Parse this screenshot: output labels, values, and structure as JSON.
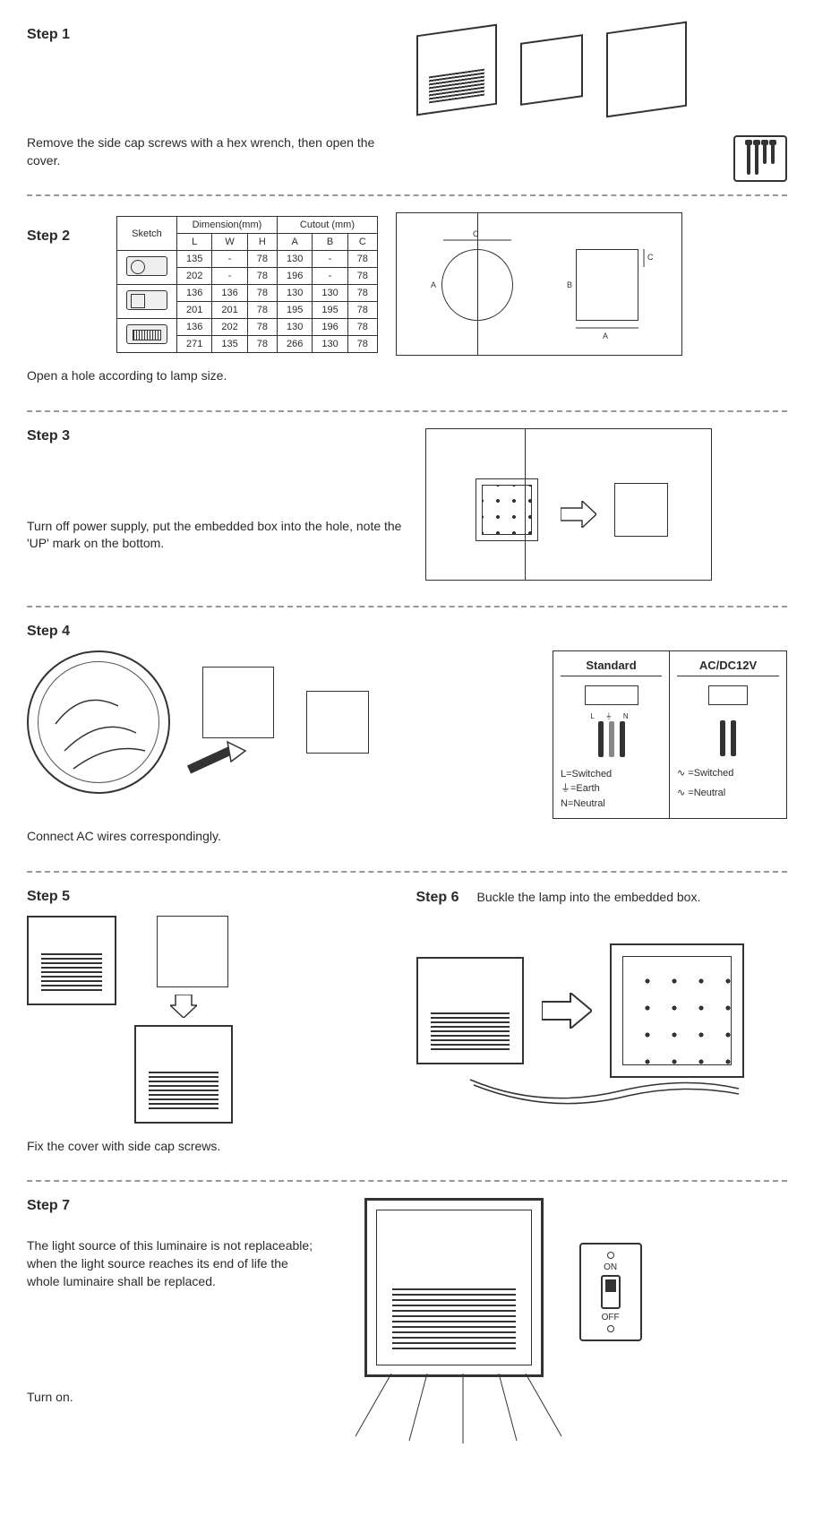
{
  "colors": {
    "ink": "#2b2b2b",
    "line": "#333333",
    "bg": "#ffffff",
    "divider": "#999999"
  },
  "typography": {
    "body_family": "Arial",
    "body_size_pt": 10.5,
    "title_size_pt": 12,
    "title_weight": "bold"
  },
  "step1": {
    "title": "Step 1",
    "note": "Remove the side cap screws with a hex wrench, then open the cover."
  },
  "step2": {
    "title": "Step 2",
    "note": "Open a hole according to lamp size.",
    "table": {
      "header_sketch": "Sketch",
      "header_group_dim": "Dimension(mm)",
      "header_group_cut": "Cutout (mm)",
      "cols_dim": [
        "L",
        "W",
        "H"
      ],
      "cols_cut": [
        "A",
        "B",
        "C"
      ],
      "rows": [
        {
          "sketch": "round",
          "L": "135",
          "W": "-",
          "H": "78",
          "A": "130",
          "B": "-",
          "C": "78"
        },
        {
          "sketch": "",
          "L": "202",
          "W": "-",
          "H": "78",
          "A": "196",
          "B": "-",
          "C": "78"
        },
        {
          "sketch": "box",
          "L": "136",
          "W": "136",
          "H": "78",
          "A": "130",
          "B": "130",
          "C": "78"
        },
        {
          "sketch": "",
          "L": "201",
          "W": "201",
          "H": "78",
          "A": "195",
          "B": "195",
          "C": "78"
        },
        {
          "sketch": "wide",
          "L": "136",
          "W": "202",
          "H": "78",
          "A": "130",
          "B": "196",
          "C": "78"
        },
        {
          "sketch": "",
          "L": "271",
          "W": "135",
          "H": "78",
          "A": "266",
          "B": "130",
          "C": "78"
        }
      ]
    },
    "diag_labels": {
      "A": "A",
      "B": "B",
      "C": "C"
    }
  },
  "step3": {
    "title": "Step 3",
    "note": "Turn off power supply, put the embedded box into the hole, note the 'UP' mark on the bottom."
  },
  "step4": {
    "title": "Step 4",
    "note": "Connect AC wires correspondingly.",
    "wiring": {
      "standard": {
        "title": "Standard",
        "terminal_labels": [
          "L",
          "⏚",
          "N"
        ],
        "legend": [
          "L=Switched",
          "⏚=Earth",
          "N=Neutral"
        ]
      },
      "lowvolt": {
        "title": "AC/DC12V",
        "legend": [
          "∿ =Switched",
          "∿ =Neutral"
        ]
      }
    }
  },
  "step5": {
    "title": "Step 5",
    "note": "Fix the cover with side cap screws."
  },
  "step6": {
    "title": "Step 6",
    "note": "Buckle the lamp into the embedded box."
  },
  "step7": {
    "title": "Step 7",
    "warn": "The light source of this luminaire is not replaceable; when the light source reaches its end of life the whole luminaire shall be replaced.",
    "note": "Turn on.",
    "switch": {
      "on": "ON",
      "off": "OFF"
    }
  }
}
